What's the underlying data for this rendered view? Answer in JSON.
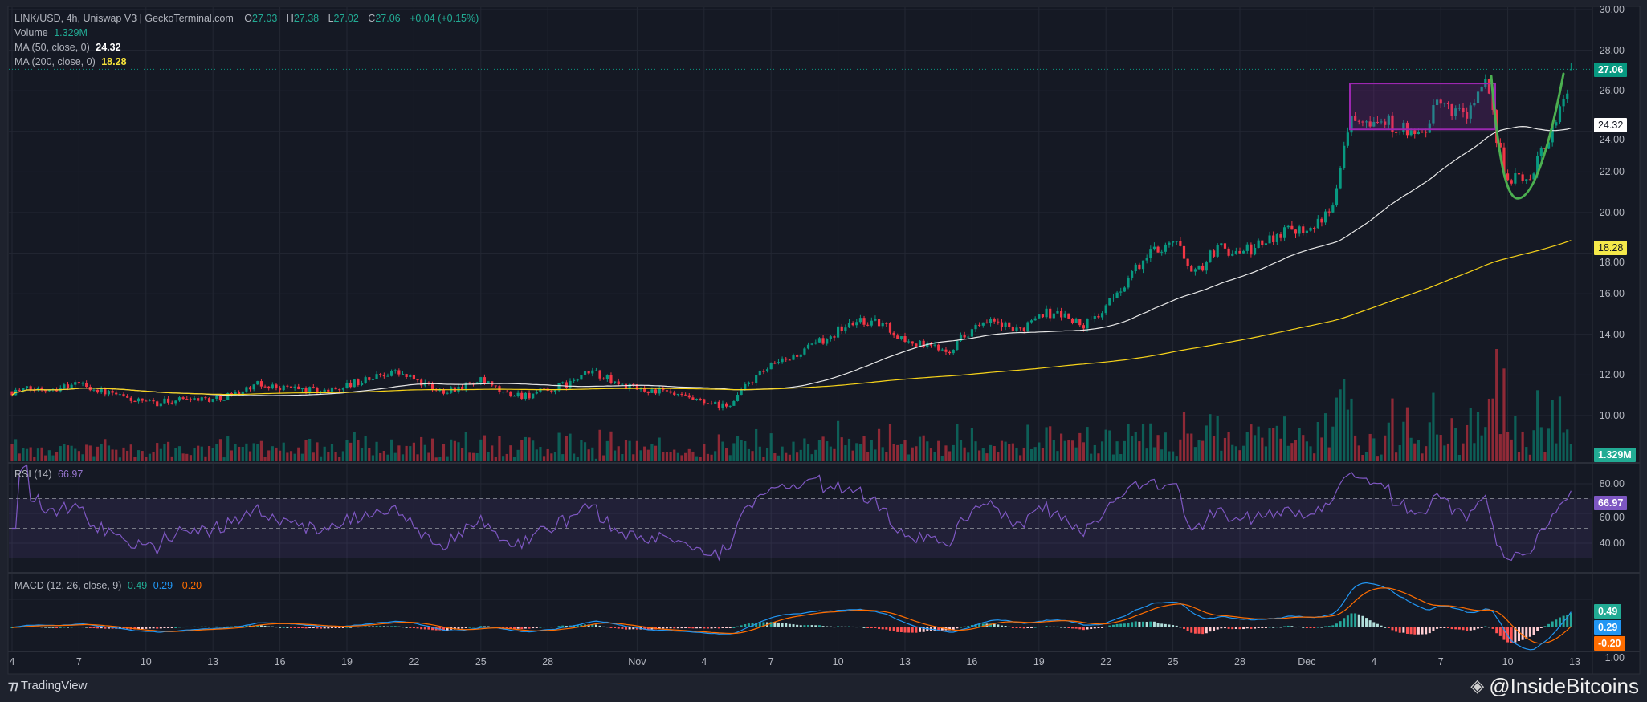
{
  "legend": {
    "symbol": "LINK/USD, 4h, Uniswap V3 | GeckoTerminal.com",
    "open_label": "O",
    "open": "27.03",
    "high_label": "H",
    "high": "27.38",
    "low_label": "L",
    "low": "27.02",
    "close_label": "C",
    "close": "27.06",
    "change": "+0.04 (+0.15%)",
    "volume_label": "Volume",
    "volume": "1.329M",
    "ma50_label": "MA (50, close, 0)",
    "ma50": "24.32",
    "ma200_label": "MA (200, close, 0)",
    "ma200": "18.28",
    "rsi_label": "RSI (14)",
    "rsi": "66.97",
    "macd_label": "MACD (12, 26, close, 9)",
    "macd_hist": "0.49",
    "macd_line": "0.29",
    "macd_signal": "-0.20"
  },
  "badges": {
    "price": "27.06",
    "ma50": "24.32",
    "ma200": "18.28",
    "volume": "1.329M",
    "rsi": "66.97",
    "macd_hist": "0.49",
    "macd_line": "0.29",
    "macd_signal": "-0.20"
  },
  "colors": {
    "up": "#089981",
    "down": "#f23645",
    "ma50": "#e8e8e8",
    "ma200": "#f7d31a",
    "rsi": "#7e57c2",
    "macd": "#2196f3",
    "signal": "#ff6d00",
    "box": "#9c27b0",
    "curve": "#4caf50"
  },
  "price_axis": [
    "30.00",
    "28.00",
    "26.00",
    "24.00",
    "22.00",
    "20.00",
    "18.00",
    "16.00",
    "14.00",
    "12.00",
    "10.00"
  ],
  "rsi_axis": [
    "80.00",
    "60.00",
    "40.00"
  ],
  "macd_axis": [
    "1.00"
  ],
  "footer": {
    "brand": "TradingView",
    "watermark": "@InsideBitcoins"
  },
  "chart_data": {
    "type": "candlestick",
    "interval": "4h",
    "x_ticks": [
      {
        "label": "4",
        "date": "10-04"
      },
      {
        "label": "7",
        "date": "10-07"
      },
      {
        "label": "10",
        "date": "10-10"
      },
      {
        "label": "13",
        "date": "10-13"
      },
      {
        "label": "16",
        "date": "10-16"
      },
      {
        "label": "19",
        "date": "10-19"
      },
      {
        "label": "22",
        "date": "10-22"
      },
      {
        "label": "25",
        "date": "10-25"
      },
      {
        "label": "28",
        "date": "10-28"
      },
      {
        "label": "Nov",
        "date": "11-01"
      },
      {
        "label": "4",
        "date": "11-04"
      },
      {
        "label": "7",
        "date": "11-07"
      },
      {
        "label": "10",
        "date": "11-10"
      },
      {
        "label": "13",
        "date": "11-13"
      },
      {
        "label": "16",
        "date": "11-16"
      },
      {
        "label": "19",
        "date": "11-19"
      },
      {
        "label": "22",
        "date": "11-22"
      },
      {
        "label": "25",
        "date": "11-25"
      },
      {
        "label": "28",
        "date": "11-28"
      },
      {
        "label": "Dec",
        "date": "12-01"
      },
      {
        "label": "4",
        "date": "12-04"
      },
      {
        "label": "7",
        "date": "12-07"
      },
      {
        "label": "10",
        "date": "12-10"
      },
      {
        "label": "13",
        "date": "12-13"
      }
    ],
    "y_range": [
      10,
      30
    ],
    "daily_closes_approx": [
      11.2,
      11.3,
      11.4,
      11.6,
      11.2,
      10.9,
      10.6,
      10.7,
      10.9,
      10.8,
      11.1,
      11.5,
      11.4,
      11.3,
      11.2,
      11.5,
      11.8,
      12.2,
      11.8,
      11.2,
      11.4,
      11.7,
      11.1,
      11.0,
      11.2,
      11.6,
      12.2,
      11.6,
      11.3,
      11.2,
      10.9,
      10.6,
      10.4,
      11.6,
      12.4,
      12.9,
      13.5,
      14.2,
      14.7,
      14.5,
      13.7,
      13.4,
      13.3,
      14.3,
      14.6,
      14.1,
      15.1,
      15.0,
      14.4,
      15.3,
      16.8,
      18.0,
      18.7,
      17.0,
      18.3,
      18.0,
      18.4,
      19.2,
      19.3,
      19.8,
      25.0,
      24.6,
      24.3,
      23.6,
      25.5,
      24.8,
      26.2,
      21.5,
      21.8,
      24.2
    ],
    "last_candle": {
      "open": 27.03,
      "high": 27.38,
      "low": 27.02,
      "close": 27.06
    },
    "last_volume_m": 1.329,
    "ma50_last": 24.32,
    "ma200_last": 18.28,
    "rsi_levels": [
      70,
      50,
      30
    ],
    "rsi_last": 66.97,
    "macd_last": {
      "histogram": 0.49,
      "macd": 0.29,
      "signal": -0.2
    },
    "annotations": [
      {
        "type": "rectangle",
        "from_date": "12-02",
        "to_date": "12-09",
        "price_top": 26.36,
        "price_bottom": 24.1
      },
      {
        "type": "cup-curve",
        "from_date": "12-09",
        "to_date": "12-12",
        "low_price": 20.7
      }
    ]
  }
}
